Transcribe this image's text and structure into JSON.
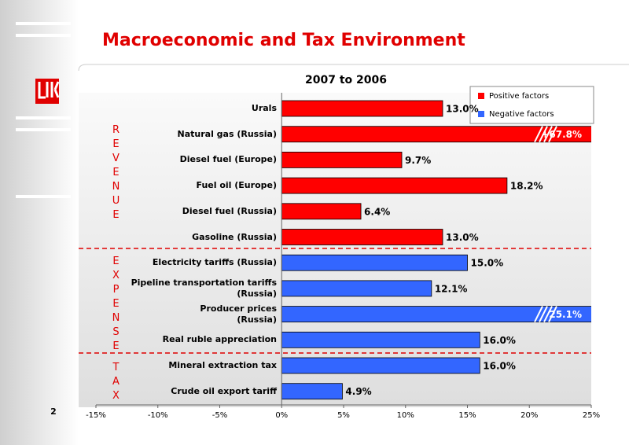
{
  "slide_number": "2",
  "title": "Macroeconomic and Tax Environment",
  "chart_data": {
    "type": "bar",
    "orientation": "horizontal",
    "title": "2007 to 2006",
    "categories": [
      "Urals",
      "Natural gas (Russia)",
      "Diesel fuel (Europe)",
      "Fuel oil (Europe)",
      "Diesel fuel (Russia)",
      "Gasoline (Russia)",
      "Electricity tariffs (Russia)",
      "Pipeline transportation tariffs\n(Russia)",
      "Producer prices\n(Russia)",
      "Real ruble appreciation",
      "Mineral extraction tax",
      "Crude oil export tariff"
    ],
    "series": [
      {
        "name": "Positive factors",
        "color": "#ff0000",
        "values": [
          13.0,
          67.8,
          9.7,
          18.2,
          6.4,
          13.0,
          null,
          null,
          null,
          null,
          null,
          null
        ],
        "value_labels": [
          "13.0%",
          "+67.8%",
          "9.7%",
          "18.2%",
          "6.4%",
          "13.0%",
          null,
          null,
          null,
          null,
          null,
          null
        ]
      },
      {
        "name": "Negative factors",
        "color": "#3366ff",
        "values": [
          null,
          null,
          null,
          null,
          null,
          null,
          15.0,
          12.1,
          25.1,
          16.0,
          16.0,
          4.9
        ],
        "value_labels": [
          null,
          null,
          null,
          null,
          null,
          null,
          "15.0%",
          "12.1%",
          "25.1%",
          "16.0%",
          "16.0%",
          "4.9%"
        ]
      }
    ],
    "groups": [
      "REVENUE",
      "EXPENSE",
      "TAX"
    ],
    "xlim": [
      -15,
      25
    ],
    "xticks": [
      {
        "value": -15,
        "label": "-15%"
      },
      {
        "value": -10,
        "label": "-10%"
      },
      {
        "value": -5,
        "label": "-5%"
      },
      {
        "value": 0,
        "label": "0%"
      },
      {
        "value": 5,
        "label": "5%"
      },
      {
        "value": 10,
        "label": "10%"
      },
      {
        "value": 15,
        "label": "15%"
      },
      {
        "value": 20,
        "label": "20%"
      },
      {
        "value": 25,
        "label": "25%"
      }
    ],
    "grid": false,
    "legend": "top-right"
  }
}
